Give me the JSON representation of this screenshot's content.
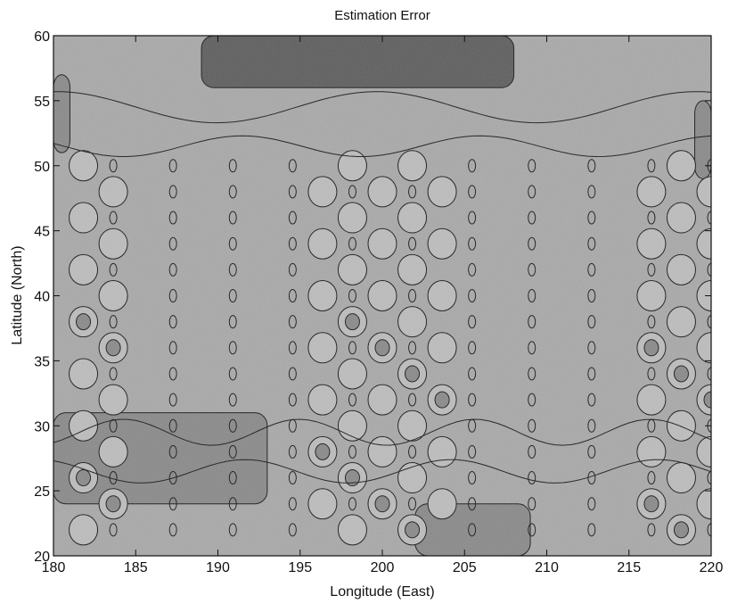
{
  "chart_data": {
    "type": "heatmap",
    "subtype": "filled contour map (grayscale)",
    "title": "Estimation Error",
    "xlabel": "Longitude (East)",
    "ylabel": "Latitude (North)",
    "xlim": [
      180,
      220
    ],
    "ylim": [
      20,
      60
    ],
    "xticks": [
      180,
      185,
      190,
      195,
      200,
      205,
      210,
      215,
      220
    ],
    "yticks": [
      20,
      25,
      30,
      35,
      40,
      45,
      50,
      55,
      60
    ],
    "colors": {
      "low": "#a9a9a9",
      "mid": "#bdbdbd",
      "high": "#8a8a8a",
      "highest": "#5e5e5e",
      "contour": "#1a1a1a"
    },
    "regions": [
      {
        "level": "highest",
        "lon": [
          189,
          208
        ],
        "lat": [
          56,
          60
        ]
      },
      {
        "level": "high",
        "lon": [
          180,
          181
        ],
        "lat": [
          51,
          57
        ]
      },
      {
        "level": "high",
        "lon": [
          219,
          220
        ],
        "lat": [
          49,
          55
        ]
      },
      {
        "level": "high",
        "lon": [
          180,
          193
        ],
        "lat": [
          24,
          31
        ]
      },
      {
        "level": "high",
        "lon": [
          202,
          209
        ],
        "lat": [
          20,
          24
        ]
      }
    ],
    "grid": false
  }
}
